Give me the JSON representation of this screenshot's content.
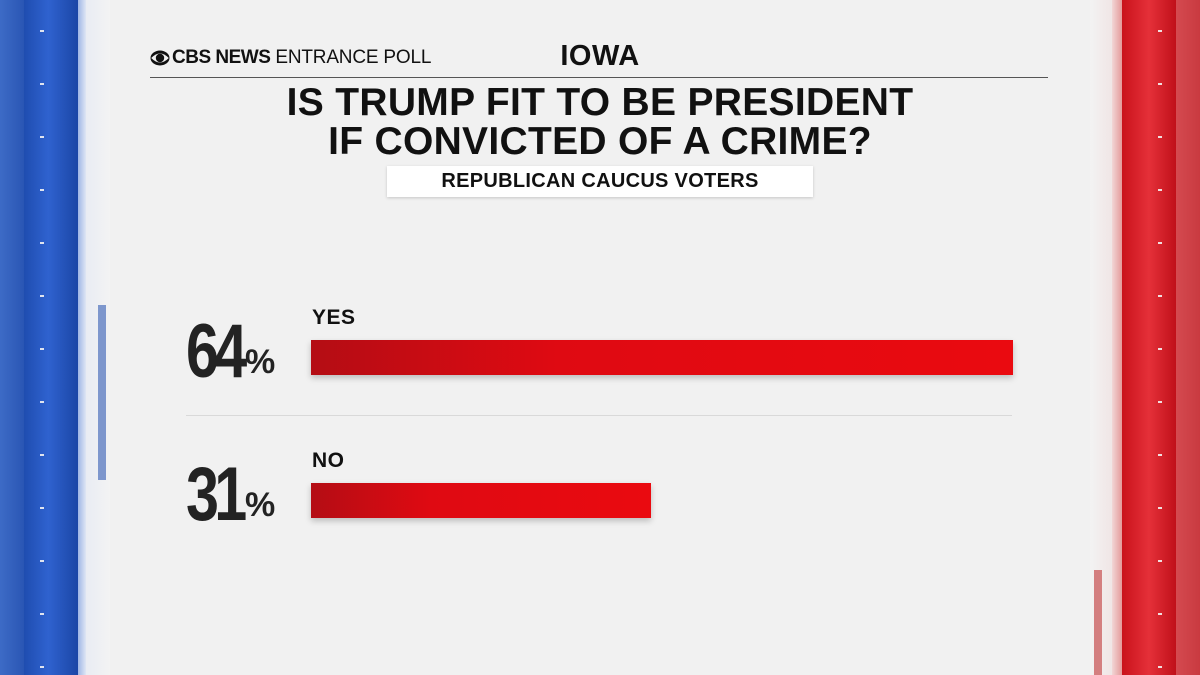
{
  "header": {
    "brand_name": "CBS NEWS",
    "brand_sub": "ENTRANCE POLL",
    "state": "IOWA"
  },
  "question_lines": [
    "IS TRUMP FIT TO BE PRESIDENT",
    "IF CONVICTED OF A CRIME?"
  ],
  "subgroup": "REPUBLICAN CAUCUS VOTERS",
  "colors": {
    "bar": "#e30a12",
    "left_panel": "#2355bd",
    "right_panel": "#d9252e"
  },
  "icons": [
    "cbs-eye-icon"
  ],
  "chart_data": {
    "type": "bar",
    "orientation": "horizontal",
    "title": "IS TRUMP FIT TO BE PRESIDENT IF CONVICTED OF A CRIME?",
    "subtitle": "REPUBLICAN CAUCUS VOTERS",
    "categories": [
      "YES",
      "NO"
    ],
    "values": [
      64,
      31
    ],
    "value_labels": [
      "64",
      "31"
    ],
    "unit": "%",
    "xlim": [
      0,
      64
    ],
    "grid": false
  }
}
